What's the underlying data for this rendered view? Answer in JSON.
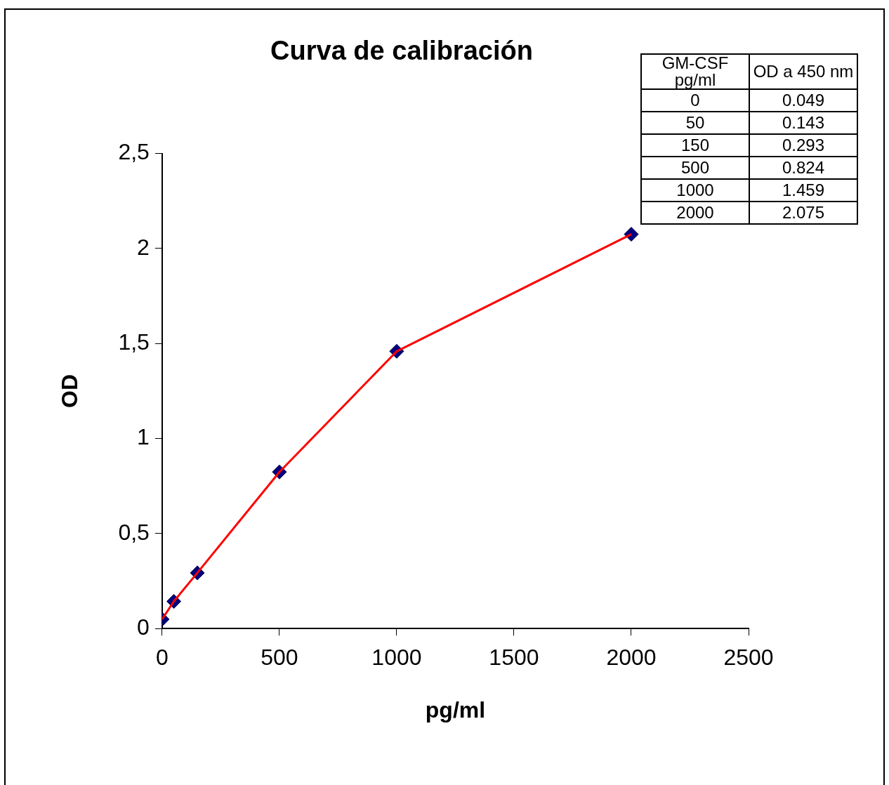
{
  "chart_data": {
    "type": "line",
    "title": "Curva de calibración",
    "xlabel": "pg/ml",
    "ylabel": "OD",
    "x": [
      0,
      50,
      150,
      500,
      1000,
      2000
    ],
    "series": [
      {
        "type": "line",
        "color": "#ff0000",
        "marker": "none",
        "values": [
          0.049,
          0.143,
          0.293,
          0.824,
          1.459,
          2.075
        ]
      },
      {
        "type": "scatter",
        "color": "#000080",
        "marker": "diamond",
        "values": [
          0.049,
          0.143,
          0.293,
          0.824,
          1.459,
          2.075
        ]
      }
    ],
    "xlim": [
      0,
      2500
    ],
    "xticks": [
      0,
      500,
      1000,
      1500,
      2000,
      2500
    ],
    "ylim": [
      0,
      2.5
    ],
    "yticks": [
      0,
      {
        "value": 0.5,
        "label": "0,5"
      },
      1,
      {
        "value": 1.5,
        "label": "1,5"
      },
      2,
      {
        "value": 2.5,
        "label": "2,5"
      }
    ],
    "annotations": [
      "GM-CSF pg/ml",
      "OD a 450 nm",
      "0",
      "0.049",
      "50",
      "0.143",
      "150",
      "0.293",
      "500",
      "0.824",
      "1000",
      "1.459",
      "2000",
      "2.075"
    ]
  }
}
